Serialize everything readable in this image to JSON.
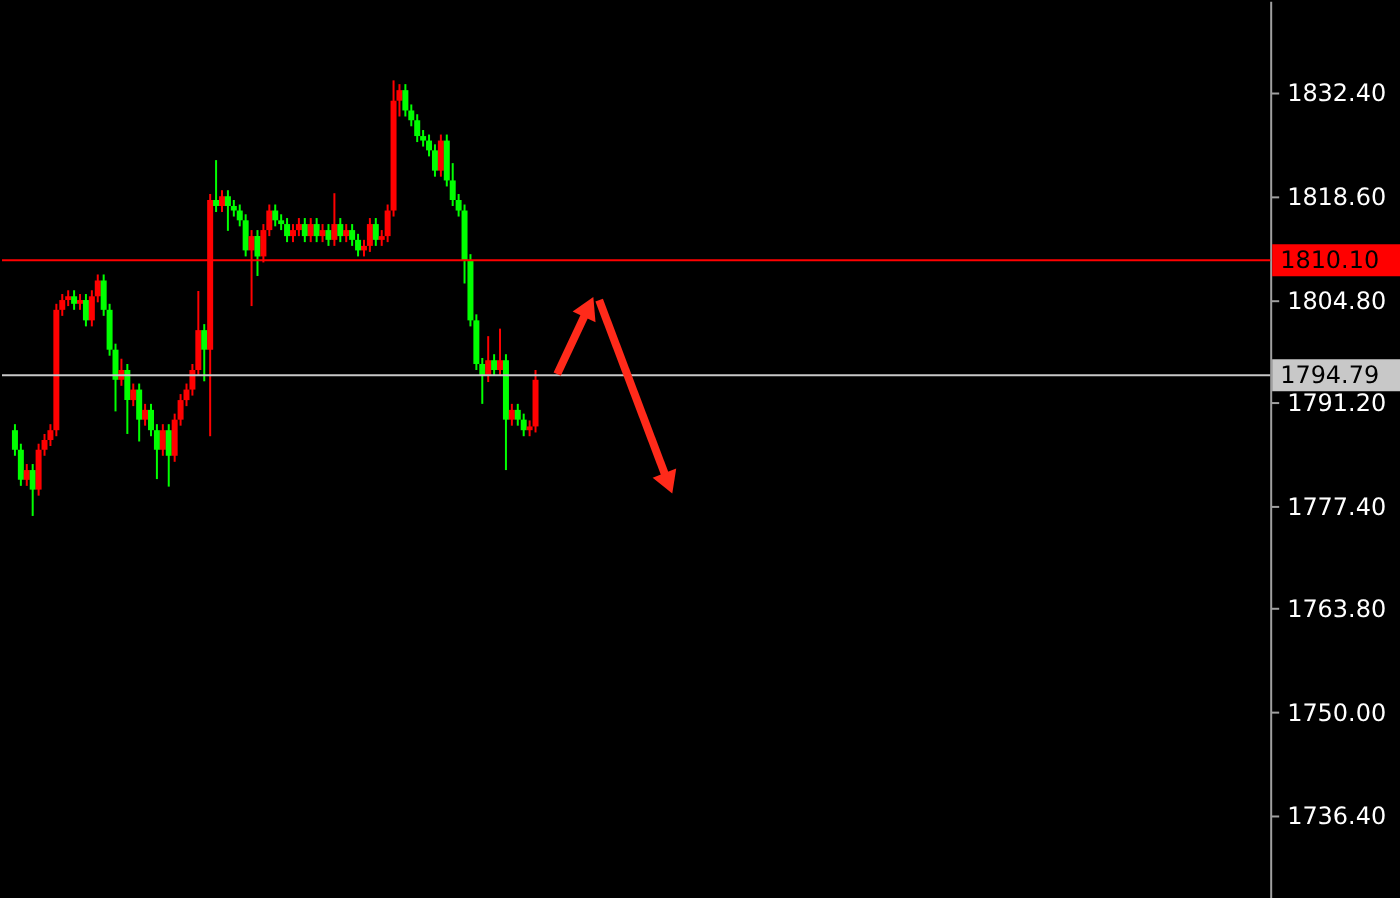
{
  "chart_data": {
    "type": "candlestick",
    "categories": [
      null,
      null,
      null,
      null,
      null,
      null,
      null,
      null,
      null,
      null,
      null,
      null,
      null,
      null,
      null,
      null,
      null,
      null,
      null,
      null,
      null,
      null,
      null,
      null,
      null,
      null,
      null,
      null,
      null,
      null,
      null,
      null,
      null,
      null,
      null,
      null,
      null,
      null,
      null,
      null,
      null,
      null,
      null,
      null,
      null,
      null,
      null,
      null,
      null,
      null,
      null,
      null,
      null,
      null,
      null,
      null,
      null,
      null,
      null,
      null,
      null,
      null,
      null,
      null,
      null,
      null,
      null,
      null,
      null,
      null,
      null,
      null,
      null,
      null,
      null,
      null,
      null,
      null,
      null,
      null,
      null,
      null,
      null,
      null,
      null,
      null,
      null,
      null,
      null,
      null,
      null,
      null,
      null,
      null,
      null,
      null,
      null,
      null,
      null,
      null,
      null,
      null,
      null,
      null,
      null,
      null,
      null,
      null,
      null,
      null,
      null,
      null,
      null,
      null,
      null,
      null,
      null,
      null,
      null,
      null,
      null,
      null,
      null,
      null,
      null,
      null,
      null,
      null,
      null,
      null,
      null,
      null,
      null,
      null,
      null,
      null,
      null,
      null,
      null,
      null,
      null,
      null,
      null,
      null,
      null,
      null,
      null,
      null,
      null,
      null,
      null,
      null,
      null,
      null,
      null,
      null,
      null,
      null,
      null,
      null,
      null,
      null,
      null,
      null,
      null,
      null,
      null,
      null,
      null,
      null,
      null,
      null,
      null,
      null,
      null,
      null,
      null,
      null,
      null,
      null,
      null,
      null,
      null,
      null,
      null,
      null,
      null,
      null,
      null,
      null,
      null,
      null,
      null,
      null,
      null,
      null,
      null,
      null,
      null,
      null,
      null,
      null,
      null,
      null,
      null,
      null,
      null,
      null,
      null,
      null,
      null
    ],
    "ohlc": [
      [
        1787.5,
        1788.3,
        1784.1,
        1784.9
      ],
      [
        1784.9,
        1785.7,
        1780.1,
        1780.9
      ],
      [
        1780.9,
        1783.0,
        1780.1,
        1782.2
      ],
      [
        1782.2,
        1783.0,
        1776.1,
        1779.6
      ],
      [
        1779.6,
        1785.7,
        1778.8,
        1784.9
      ],
      [
        1784.9,
        1787.0,
        1784.1,
        1786.2
      ],
      [
        1786.2,
        1788.3,
        1785.4,
        1787.5
      ],
      [
        1787.5,
        1804.3,
        1786.7,
        1803.5
      ],
      [
        1803.5,
        1805.6,
        1802.7,
        1804.8
      ],
      [
        1804.8,
        1806.1,
        1804.0,
        1805.3
      ],
      [
        1805.3,
        1806.1,
        1803.5,
        1804.3
      ],
      [
        1804.3,
        1805.6,
        1803.5,
        1804.8
      ],
      [
        1804.8,
        1805.6,
        1801.3,
        1802.1
      ],
      [
        1802.1,
        1806.1,
        1801.3,
        1805.3
      ],
      [
        1805.3,
        1808.2,
        1804.5,
        1807.4
      ],
      [
        1807.4,
        1808.2,
        1802.7,
        1803.5
      ],
      [
        1803.5,
        1804.3,
        1797.4,
        1798.2
      ],
      [
        1798.2,
        1799.0,
        1790.0,
        1794.2
      ],
      [
        1794.2,
        1797.0,
        1793.4,
        1795.5
      ],
      [
        1795.5,
        1796.3,
        1787.0,
        1791.5
      ],
      [
        1791.5,
        1793.7,
        1790.7,
        1792.9
      ],
      [
        1792.9,
        1793.7,
        1786.0,
        1788.9
      ],
      [
        1788.9,
        1791.0,
        1788.1,
        1790.2
      ],
      [
        1790.2,
        1791.0,
        1786.7,
        1787.5
      ],
      [
        1787.5,
        1788.3,
        1781.0,
        1784.9
      ],
      [
        1784.9,
        1788.3,
        1784.1,
        1787.5
      ],
      [
        1787.5,
        1788.3,
        1780.0,
        1784.1
      ],
      [
        1784.1,
        1789.7,
        1783.3,
        1788.9
      ],
      [
        1788.9,
        1792.3,
        1788.1,
        1791.5
      ],
      [
        1791.5,
        1793.7,
        1790.7,
        1792.9
      ],
      [
        1792.9,
        1796.3,
        1792.1,
        1795.5
      ],
      [
        1795.5,
        1806.0,
        1794.7,
        1800.8
      ],
      [
        1800.8,
        1801.6,
        1794.0,
        1798.2
      ],
      [
        1798.2,
        1818.9,
        1786.7,
        1818.1
      ],
      [
        1818.1,
        1823.4,
        1816.5,
        1817.3
      ],
      [
        1817.3,
        1819.4,
        1816.5,
        1818.6
      ],
      [
        1818.6,
        1819.4,
        1814.0,
        1817.3
      ],
      [
        1817.3,
        1818.1,
        1815.9,
        1816.7
      ],
      [
        1816.7,
        1817.5,
        1814.6,
        1815.4
      ],
      [
        1815.4,
        1816.2,
        1810.6,
        1811.4
      ],
      [
        1811.4,
        1814.1,
        1804.0,
        1813.3
      ],
      [
        1813.3,
        1814.1,
        1808.0,
        1810.6
      ],
      [
        1810.6,
        1814.9,
        1809.8,
        1814.1
      ],
      [
        1814.1,
        1817.5,
        1813.3,
        1816.7
      ],
      [
        1816.7,
        1817.5,
        1814.6,
        1815.4
      ],
      [
        1815.4,
        1816.2,
        1814.1,
        1814.9
      ],
      [
        1814.9,
        1815.7,
        1812.5,
        1813.3
      ],
      [
        1813.3,
        1814.9,
        1812.5,
        1814.1
      ],
      [
        1814.1,
        1815.7,
        1813.3,
        1814.9
      ],
      [
        1814.9,
        1815.7,
        1812.5,
        1813.3
      ],
      [
        1813.3,
        1815.7,
        1812.5,
        1814.9
      ],
      [
        1814.9,
        1815.7,
        1812.5,
        1813.3
      ],
      [
        1813.3,
        1814.9,
        1812.5,
        1814.1
      ],
      [
        1814.1,
        1814.9,
        1812.0,
        1812.8
      ],
      [
        1812.8,
        1819.0,
        1812.0,
        1814.9
      ],
      [
        1814.9,
        1815.7,
        1812.5,
        1813.3
      ],
      [
        1813.3,
        1814.9,
        1812.5,
        1814.1
      ],
      [
        1814.1,
        1814.9,
        1812.0,
        1812.8
      ],
      [
        1812.8,
        1813.6,
        1810.6,
        1811.4
      ],
      [
        1811.4,
        1812.8,
        1810.6,
        1812.0
      ],
      [
        1812.0,
        1815.7,
        1811.2,
        1814.9
      ],
      [
        1814.9,
        1815.7,
        1812.0,
        1812.8
      ],
      [
        1812.8,
        1814.1,
        1812.0,
        1813.3
      ],
      [
        1813.3,
        1817.5,
        1812.5,
        1816.7
      ],
      [
        1816.7,
        1834.0,
        1815.9,
        1831.3
      ],
      [
        1831.3,
        1833.5,
        1829.2,
        1832.7
      ],
      [
        1832.7,
        1833.5,
        1829.2,
        1830.0
      ],
      [
        1830.0,
        1830.8,
        1827.9,
        1828.7
      ],
      [
        1828.7,
        1829.5,
        1825.8,
        1826.6
      ],
      [
        1826.6,
        1827.4,
        1825.2,
        1826.0
      ],
      [
        1826.0,
        1826.8,
        1823.9,
        1824.7
      ],
      [
        1824.7,
        1825.5,
        1821.2,
        1822.0
      ],
      [
        1822.0,
        1826.8,
        1821.2,
        1826.0
      ],
      [
        1826.0,
        1826.8,
        1819.9,
        1820.7
      ],
      [
        1820.7,
        1823.0,
        1817.3,
        1818.1
      ],
      [
        1818.1,
        1818.9,
        1815.9,
        1816.7
      ],
      [
        1816.7,
        1817.5,
        1807.0,
        1810.1
      ],
      [
        1810.1,
        1810.9,
        1801.3,
        1802.1
      ],
      [
        1802.1,
        1802.9,
        1795.5,
        1796.3
      ],
      [
        1796.3,
        1797.1,
        1791.0,
        1794.7
      ],
      [
        1794.7,
        1800.0,
        1793.9,
        1796.8
      ],
      [
        1796.8,
        1797.6,
        1794.7,
        1795.5
      ],
      [
        1795.5,
        1801.0,
        1794.7,
        1796.8
      ],
      [
        1796.8,
        1797.6,
        1782.2,
        1788.9
      ],
      [
        1788.9,
        1791.0,
        1788.1,
        1790.2
      ],
      [
        1790.2,
        1791.0,
        1788.1,
        1788.9
      ],
      [
        1788.9,
        1789.7,
        1786.7,
        1787.5
      ],
      [
        1787.5,
        1788.8,
        1786.7,
        1788.0
      ],
      [
        1788.0,
        1795.5,
        1787.2,
        1794.2
      ],
      null,
      null,
      null,
      null,
      null,
      null,
      null,
      null,
      null,
      null,
      null,
      null,
      null,
      null,
      null,
      null,
      null,
      null,
      null,
      null,
      null,
      null,
      null,
      null,
      null,
      null,
      null,
      null,
      null,
      null,
      null,
      null,
      null,
      null,
      null,
      null,
      null,
      null,
      null,
      null,
      null,
      null,
      null,
      null,
      null,
      null,
      null,
      null,
      null,
      null,
      null,
      null,
      null,
      null,
      null,
      null,
      null,
      null,
      null,
      null,
      null,
      null,
      null,
      null,
      null,
      null,
      null,
      null,
      null,
      null,
      null,
      null,
      null,
      null,
      null,
      null,
      null,
      null,
      null,
      null,
      null,
      null,
      null,
      null,
      null,
      null,
      null,
      null,
      null,
      null,
      null,
      null,
      null,
      null,
      null,
      null,
      null,
      null,
      null,
      null,
      null,
      null,
      null,
      null,
      null,
      null,
      null,
      null,
      null,
      null,
      null,
      null,
      null,
      null,
      null,
      null,
      null,
      null,
      null,
      null,
      null,
      null
    ],
    "colors": [
      "#00ff00",
      "#00ff00",
      "#ff0000",
      "#00ff00",
      "#ff0000",
      "#ff0000",
      "#ff0000",
      "#ff0000",
      "#ff0000",
      "#ff0000",
      "#00ff00",
      "#ff0000",
      "#00ff00",
      "#ff0000",
      "#ff0000",
      "#00ff00",
      "#00ff00",
      "#00ff00",
      "#ff0000",
      "#00ff00",
      "#ff0000",
      "#00ff00",
      "#ff0000",
      "#00ff00",
      "#00ff00",
      "#ff0000",
      "#00ff00",
      "#ff0000",
      "#ff0000",
      "#ff0000",
      "#ff0000",
      "#ff0000",
      "#00ff00",
      "#ff0000",
      "#00ff00",
      "#ff0000",
      "#00ff00",
      "#00ff00",
      "#00ff00",
      "#00ff00",
      "#ff0000",
      "#00ff00",
      "#ff0000",
      "#ff0000",
      "#00ff00",
      "#00ff00",
      "#00ff00",
      "#ff0000",
      "#ff0000",
      "#00ff00",
      "#ff0000",
      "#00ff00",
      "#ff0000",
      "#00ff00",
      "#ff0000",
      "#00ff00",
      "#ff0000",
      "#00ff00",
      "#00ff00",
      "#ff0000",
      "#ff0000",
      "#00ff00",
      "#ff0000",
      "#ff0000",
      "#ff0000",
      "#ff0000",
      "#00ff00",
      "#00ff00",
      "#00ff00",
      "#00ff00",
      "#00ff00",
      "#00ff00",
      "#ff0000",
      "#00ff00",
      "#00ff00",
      "#00ff00",
      "#00ff00",
      "#00ff00",
      "#00ff00",
      "#00ff00",
      "#ff0000",
      "#00ff00",
      "#ff0000",
      "#00ff00",
      "#ff0000",
      "#00ff00",
      "#00ff00",
      "#ff0000",
      "#ff0000",
      null,
      null,
      null,
      null,
      null,
      null,
      null,
      null,
      null,
      null,
      null,
      null,
      null,
      null,
      null,
      null,
      null,
      null,
      null,
      null,
      null,
      null,
      null,
      null,
      null,
      null,
      null,
      null,
      null,
      null,
      null,
      null,
      null,
      null,
      null,
      null,
      null,
      null,
      null,
      null,
      null,
      null,
      null,
      null,
      null,
      null,
      null,
      null,
      null,
      null,
      null,
      null,
      null,
      null,
      null,
      null,
      null,
      null,
      null,
      null,
      null,
      null,
      null,
      null,
      null,
      null,
      null,
      null,
      null,
      null,
      null,
      null,
      null,
      null,
      null,
      null,
      null,
      null,
      null,
      null,
      null,
      null,
      null,
      null,
      null,
      null,
      null,
      null,
      null,
      null,
      null,
      null,
      null,
      null,
      null,
      null,
      null,
      null,
      null,
      null,
      null,
      null,
      null,
      null,
      null,
      null,
      null,
      null,
      null,
      null,
      null,
      null,
      null,
      null,
      null,
      null,
      null,
      null,
      null,
      null,
      null,
      null
    ],
    "ylim": [
      1725.4,
      1844.6
    ],
    "yticks": [
      {
        "value": 1832.4,
        "label": "1832.40"
      },
      {
        "value": 1818.6,
        "label": "1818.60"
      },
      {
        "value": 1804.8,
        "label": "1804.80"
      },
      {
        "value": 1791.2,
        "label": "1791.20"
      },
      {
        "value": 1777.4,
        "label": "1777.40"
      },
      {
        "value": 1763.8,
        "label": "1763.80"
      },
      {
        "value": 1750.0,
        "label": "1750.00"
      },
      {
        "value": 1736.4,
        "label": "1736.40"
      }
    ],
    "ref_lines": [
      {
        "axis": "y",
        "value": 1810.1,
        "label": "1810.10",
        "color": "#ff0000"
      },
      {
        "axis": "y",
        "value": 1794.79,
        "label": "1794.79",
        "color": "#c8c8c8"
      }
    ],
    "grid": false,
    "tick_labels": "y"
  }
}
